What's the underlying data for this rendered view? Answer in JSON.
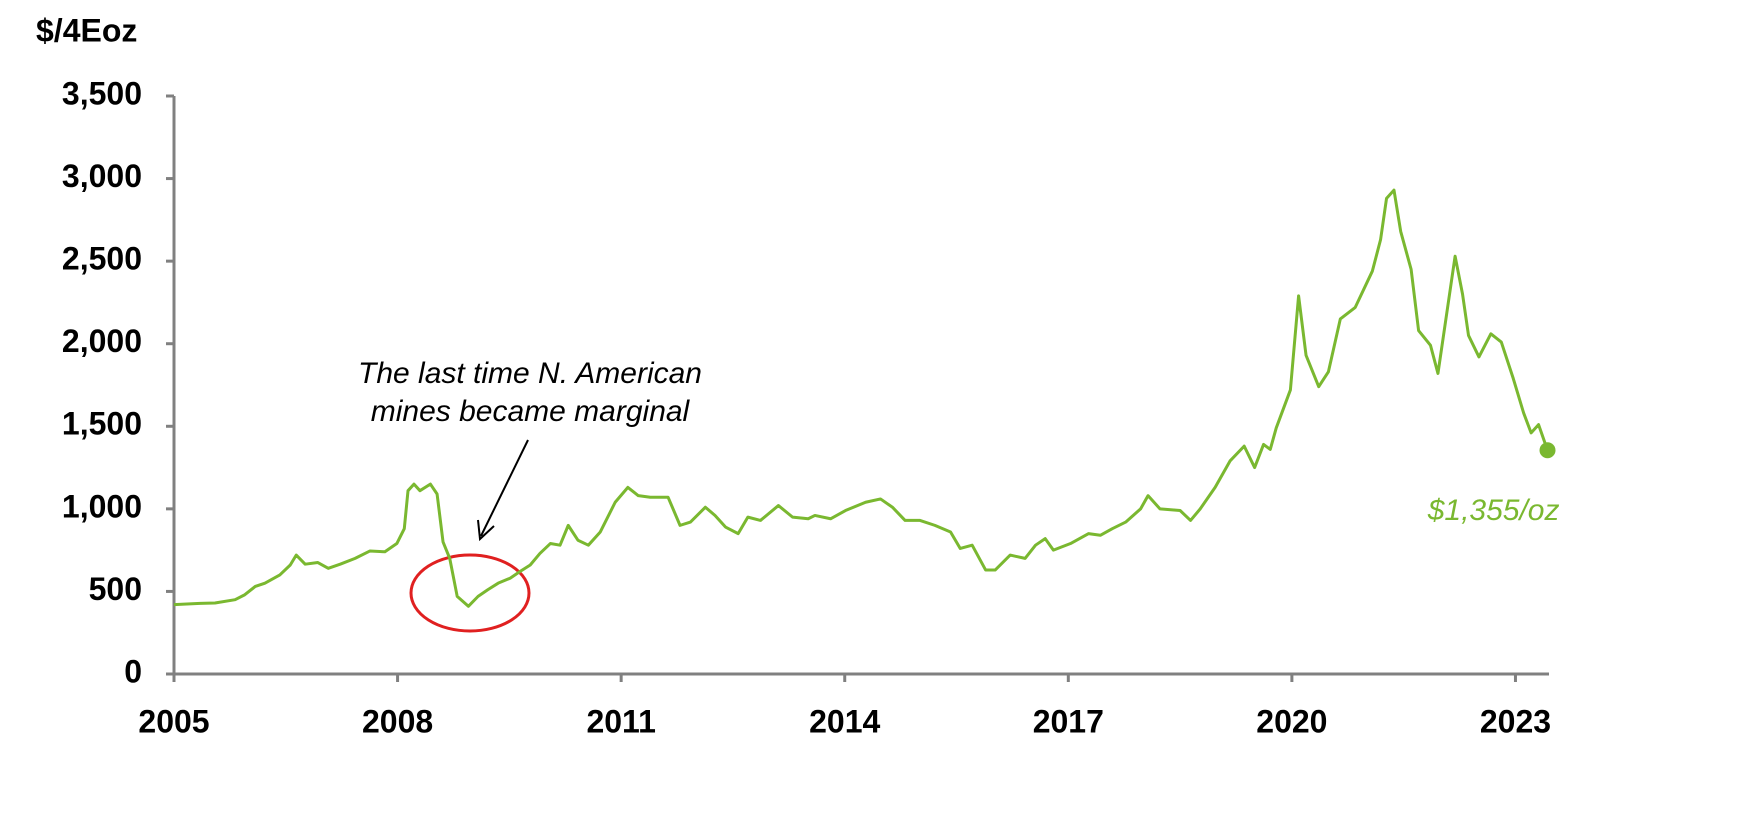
{
  "chart_data": {
    "type": "line",
    "ylabel": "$/4Eoz",
    "annotation": [
      "The last time N. American",
      "mines became marginal"
    ],
    "xlim": [
      2005,
      2023.45
    ],
    "xticks": [
      2005,
      2008,
      2011,
      2014,
      2017,
      2020,
      2023
    ],
    "ylim": [
      0,
      3500
    ],
    "yticks": [
      0,
      500,
      {
        "value": 1000,
        "label": "1,000"
      },
      {
        "value": 1500,
        "label": "1,500"
      },
      {
        "value": 2000,
        "label": "2,000"
      },
      {
        "value": 2500,
        "label": "2,500"
      },
      {
        "value": 3000,
        "label": "3,000"
      },
      {
        "value": 3500,
        "label": "3,500"
      }
    ],
    "x": [
      2005.0,
      2005.35,
      2005.55,
      2005.82,
      2005.95,
      2006.09,
      2006.22,
      2006.42,
      2006.56,
      2006.64,
      2006.76,
      2006.93,
      2007.07,
      2007.23,
      2007.43,
      2007.63,
      2007.83,
      2007.99,
      2008.09,
      2008.14,
      2008.22,
      2008.3,
      2008.44,
      2008.53,
      2008.61,
      2008.7,
      2008.8,
      2008.95,
      2009.08,
      2009.21,
      2009.35,
      2009.51,
      2009.64,
      2009.78,
      2009.91,
      2010.05,
      2010.18,
      2010.29,
      2010.42,
      2010.56,
      2010.72,
      2010.92,
      2011.09,
      2011.23,
      2011.39,
      2011.63,
      2011.79,
      2011.93,
      2012.13,
      2012.26,
      2012.4,
      2012.57,
      2012.7,
      2012.87,
      2013.11,
      2013.3,
      2013.51,
      2013.6,
      2013.81,
      2014.01,
      2014.28,
      2014.48,
      2014.64,
      2014.81,
      2015.01,
      2015.21,
      2015.42,
      2015.55,
      2015.71,
      2015.89,
      2016.02,
      2016.22,
      2016.42,
      2016.56,
      2016.69,
      2016.8,
      2017.03,
      2017.27,
      2017.43,
      2017.59,
      2017.77,
      2017.97,
      2018.07,
      2018.23,
      2018.5,
      2018.64,
      2018.77,
      2018.97,
      2019.17,
      2019.36,
      2019.5,
      2019.62,
      2019.71,
      2019.79,
      2019.98,
      2020.09,
      2020.19,
      2020.36,
      2020.49,
      2020.65,
      2020.85,
      2021.08,
      2021.19,
      2021.27,
      2021.37,
      2021.46,
      2021.6,
      2021.7,
      2021.86,
      2021.96,
      2022.19,
      2022.29,
      2022.37,
      2022.51,
      2022.67,
      2022.81,
      2022.97,
      2023.11,
      2023.21,
      2023.31,
      2023.43
    ],
    "series": [
      {
        "color": "#7ab830",
        "end_label": "$1,355/oz",
        "values": [
          420,
          428,
          430,
          450,
          480,
          530,
          550,
          600,
          660,
          720,
          665,
          675,
          640,
          665,
          700,
          745,
          740,
          790,
          880,
          1110,
          1150,
          1110,
          1150,
          1090,
          800,
          700,
          470,
          410,
          470,
          510,
          550,
          580,
          620,
          660,
          730,
          790,
          780,
          900,
          810,
          780,
          860,
          1040,
          1130,
          1080,
          1070,
          1070,
          900,
          920,
          1010,
          960,
          890,
          850,
          950,
          930,
          1020,
          950,
          940,
          960,
          940,
          990,
          1040,
          1060,
          1010,
          930,
          930,
          900,
          860,
          760,
          780,
          630,
          630,
          720,
          700,
          780,
          820,
          750,
          790,
          850,
          840,
          880,
          920,
          1000,
          1080,
          1000,
          990,
          930,
          1000,
          1130,
          1290,
          1380,
          1250,
          1390,
          1360,
          1490,
          1720,
          2290,
          1930,
          1740,
          1830,
          2150,
          2220,
          2440,
          2630,
          2880,
          2930,
          2680,
          2450,
          2080,
          1990,
          1820,
          2530,
          2300,
          2050,
          1920,
          2060,
          2010,
          1790,
          1580,
          1460,
          1510,
          1355
        ]
      }
    ]
  }
}
